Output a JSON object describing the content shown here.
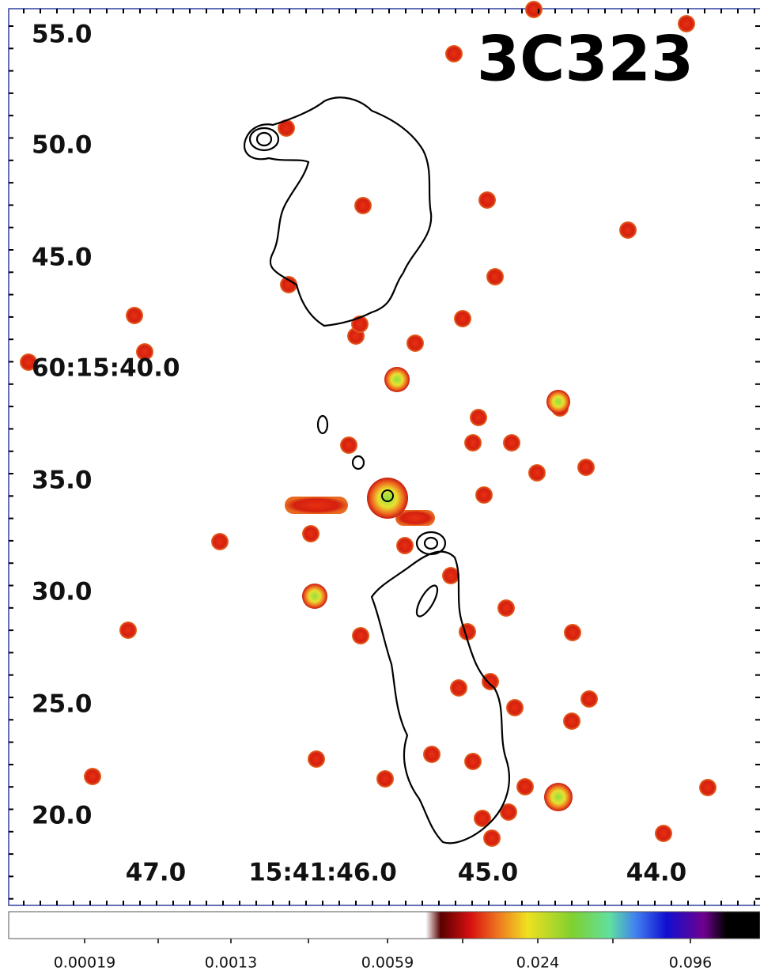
{
  "title": "3C323",
  "y_axis": {
    "labels": [
      "55.0",
      "50.0",
      "45.0",
      "60:15:40.0",
      "35.0",
      "30.0",
      "25.0",
      "20.0"
    ]
  },
  "x_axis": {
    "labels": [
      "47.0",
      "15:41:46.0",
      "45.0",
      "44.0"
    ]
  },
  "colorbar": {
    "labels": [
      "0.00019",
      "0.0013",
      "0.0059",
      "0.024",
      "0.096"
    ]
  }
}
